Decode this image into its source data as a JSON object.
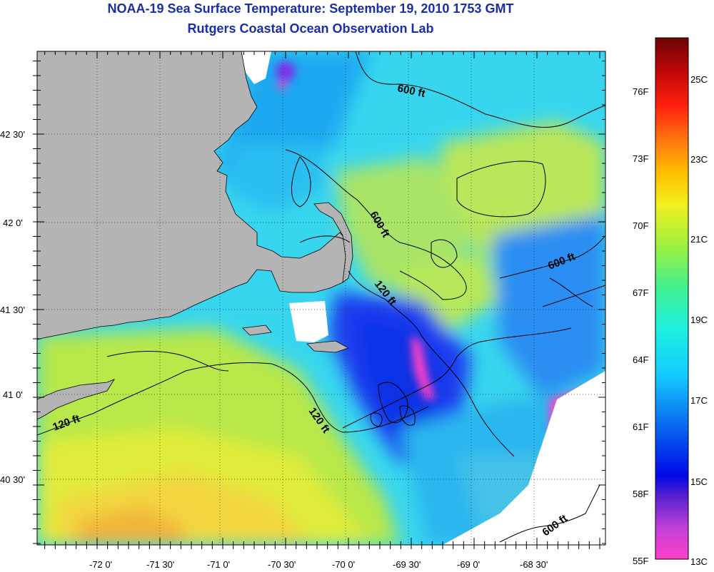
{
  "header": {
    "title": "NOAA-19 Sea Surface Temperature:  September 19, 2010 1753 GMT",
    "subtitle": "Rutgers Coastal Ocean Observation Lab"
  },
  "map": {
    "longitude_labels": [
      "-72 0'",
      "-71 30'",
      "-71 0'",
      "-70 30'",
      "-70 0'",
      "-69 30'",
      "-69 0'",
      "-68 30'"
    ],
    "latitude_labels": [
      "42 30'",
      "42 0'",
      "41 30'",
      "41 0'",
      "40 30'"
    ],
    "contour_labels": [
      "600 ft",
      "600 ft",
      "600 ft",
      "600 ft",
      "120 ft",
      "120 ft",
      "120 ft"
    ],
    "colors": {
      "land": "#b4b4b4",
      "cloud": "#ffffff",
      "warm_shelf": "#c6e83a",
      "cool_water": "#2dc8f0",
      "cold_water": "#1a4af0",
      "coldest": "#ff3fc8"
    }
  },
  "colorbar": {
    "fahrenheit_labels": [
      "76F",
      "73F",
      "70F",
      "67F",
      "64F",
      "61F",
      "58F",
      "55F"
    ],
    "celsius_labels": [
      "25C",
      "23C",
      "21C",
      "19C",
      "17C",
      "15C",
      "13C"
    ],
    "range_celsius": [
      13,
      26
    ],
    "range_fahrenheit": [
      55,
      79
    ]
  }
}
